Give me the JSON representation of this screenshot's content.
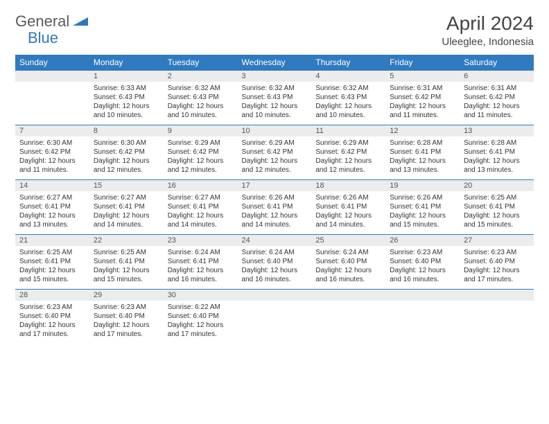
{
  "logo": {
    "general": "General",
    "blue": "Blue"
  },
  "title": "April 2024",
  "location": "Uleeglee, Indonesia",
  "colors": {
    "header_bg": "#307abf",
    "header_text": "#ffffff",
    "daynum_bg": "#ececec",
    "daynum_text": "#555555",
    "border": "#307abf",
    "logo_gray": "#5a5a5a",
    "logo_blue": "#2f78bf"
  },
  "weekdays": [
    "Sunday",
    "Monday",
    "Tuesday",
    "Wednesday",
    "Thursday",
    "Friday",
    "Saturday"
  ],
  "weeks": [
    [
      {
        "day": "",
        "sunrise": "",
        "sunset": "",
        "daylight": ""
      },
      {
        "day": "1",
        "sunrise": "Sunrise: 6:33 AM",
        "sunset": "Sunset: 6:43 PM",
        "daylight": "Daylight: 12 hours and 10 minutes."
      },
      {
        "day": "2",
        "sunrise": "Sunrise: 6:32 AM",
        "sunset": "Sunset: 6:43 PM",
        "daylight": "Daylight: 12 hours and 10 minutes."
      },
      {
        "day": "3",
        "sunrise": "Sunrise: 6:32 AM",
        "sunset": "Sunset: 6:43 PM",
        "daylight": "Daylight: 12 hours and 10 minutes."
      },
      {
        "day": "4",
        "sunrise": "Sunrise: 6:32 AM",
        "sunset": "Sunset: 6:43 PM",
        "daylight": "Daylight: 12 hours and 10 minutes."
      },
      {
        "day": "5",
        "sunrise": "Sunrise: 6:31 AM",
        "sunset": "Sunset: 6:42 PM",
        "daylight": "Daylight: 12 hours and 11 minutes."
      },
      {
        "day": "6",
        "sunrise": "Sunrise: 6:31 AM",
        "sunset": "Sunset: 6:42 PM",
        "daylight": "Daylight: 12 hours and 11 minutes."
      }
    ],
    [
      {
        "day": "7",
        "sunrise": "Sunrise: 6:30 AM",
        "sunset": "Sunset: 6:42 PM",
        "daylight": "Daylight: 12 hours and 11 minutes."
      },
      {
        "day": "8",
        "sunrise": "Sunrise: 6:30 AM",
        "sunset": "Sunset: 6:42 PM",
        "daylight": "Daylight: 12 hours and 12 minutes."
      },
      {
        "day": "9",
        "sunrise": "Sunrise: 6:29 AM",
        "sunset": "Sunset: 6:42 PM",
        "daylight": "Daylight: 12 hours and 12 minutes."
      },
      {
        "day": "10",
        "sunrise": "Sunrise: 6:29 AM",
        "sunset": "Sunset: 6:42 PM",
        "daylight": "Daylight: 12 hours and 12 minutes."
      },
      {
        "day": "11",
        "sunrise": "Sunrise: 6:29 AM",
        "sunset": "Sunset: 6:42 PM",
        "daylight": "Daylight: 12 hours and 12 minutes."
      },
      {
        "day": "12",
        "sunrise": "Sunrise: 6:28 AM",
        "sunset": "Sunset: 6:41 PM",
        "daylight": "Daylight: 12 hours and 13 minutes."
      },
      {
        "day": "13",
        "sunrise": "Sunrise: 6:28 AM",
        "sunset": "Sunset: 6:41 PM",
        "daylight": "Daylight: 12 hours and 13 minutes."
      }
    ],
    [
      {
        "day": "14",
        "sunrise": "Sunrise: 6:27 AM",
        "sunset": "Sunset: 6:41 PM",
        "daylight": "Daylight: 12 hours and 13 minutes."
      },
      {
        "day": "15",
        "sunrise": "Sunrise: 6:27 AM",
        "sunset": "Sunset: 6:41 PM",
        "daylight": "Daylight: 12 hours and 14 minutes."
      },
      {
        "day": "16",
        "sunrise": "Sunrise: 6:27 AM",
        "sunset": "Sunset: 6:41 PM",
        "daylight": "Daylight: 12 hours and 14 minutes."
      },
      {
        "day": "17",
        "sunrise": "Sunrise: 6:26 AM",
        "sunset": "Sunset: 6:41 PM",
        "daylight": "Daylight: 12 hours and 14 minutes."
      },
      {
        "day": "18",
        "sunrise": "Sunrise: 6:26 AM",
        "sunset": "Sunset: 6:41 PM",
        "daylight": "Daylight: 12 hours and 14 minutes."
      },
      {
        "day": "19",
        "sunrise": "Sunrise: 6:26 AM",
        "sunset": "Sunset: 6:41 PM",
        "daylight": "Daylight: 12 hours and 15 minutes."
      },
      {
        "day": "20",
        "sunrise": "Sunrise: 6:25 AM",
        "sunset": "Sunset: 6:41 PM",
        "daylight": "Daylight: 12 hours and 15 minutes."
      }
    ],
    [
      {
        "day": "21",
        "sunrise": "Sunrise: 6:25 AM",
        "sunset": "Sunset: 6:41 PM",
        "daylight": "Daylight: 12 hours and 15 minutes."
      },
      {
        "day": "22",
        "sunrise": "Sunrise: 6:25 AM",
        "sunset": "Sunset: 6:41 PM",
        "daylight": "Daylight: 12 hours and 15 minutes."
      },
      {
        "day": "23",
        "sunrise": "Sunrise: 6:24 AM",
        "sunset": "Sunset: 6:41 PM",
        "daylight": "Daylight: 12 hours and 16 minutes."
      },
      {
        "day": "24",
        "sunrise": "Sunrise: 6:24 AM",
        "sunset": "Sunset: 6:40 PM",
        "daylight": "Daylight: 12 hours and 16 minutes."
      },
      {
        "day": "25",
        "sunrise": "Sunrise: 6:24 AM",
        "sunset": "Sunset: 6:40 PM",
        "daylight": "Daylight: 12 hours and 16 minutes."
      },
      {
        "day": "26",
        "sunrise": "Sunrise: 6:23 AM",
        "sunset": "Sunset: 6:40 PM",
        "daylight": "Daylight: 12 hours and 16 minutes."
      },
      {
        "day": "27",
        "sunrise": "Sunrise: 6:23 AM",
        "sunset": "Sunset: 6:40 PM",
        "daylight": "Daylight: 12 hours and 17 minutes."
      }
    ],
    [
      {
        "day": "28",
        "sunrise": "Sunrise: 6:23 AM",
        "sunset": "Sunset: 6:40 PM",
        "daylight": "Daylight: 12 hours and 17 minutes."
      },
      {
        "day": "29",
        "sunrise": "Sunrise: 6:23 AM",
        "sunset": "Sunset: 6:40 PM",
        "daylight": "Daylight: 12 hours and 17 minutes."
      },
      {
        "day": "30",
        "sunrise": "Sunrise: 6:22 AM",
        "sunset": "Sunset: 6:40 PM",
        "daylight": "Daylight: 12 hours and 17 minutes."
      },
      {
        "day": "",
        "sunrise": "",
        "sunset": "",
        "daylight": ""
      },
      {
        "day": "",
        "sunrise": "",
        "sunset": "",
        "daylight": ""
      },
      {
        "day": "",
        "sunrise": "",
        "sunset": "",
        "daylight": ""
      },
      {
        "day": "",
        "sunrise": "",
        "sunset": "",
        "daylight": ""
      }
    ]
  ]
}
